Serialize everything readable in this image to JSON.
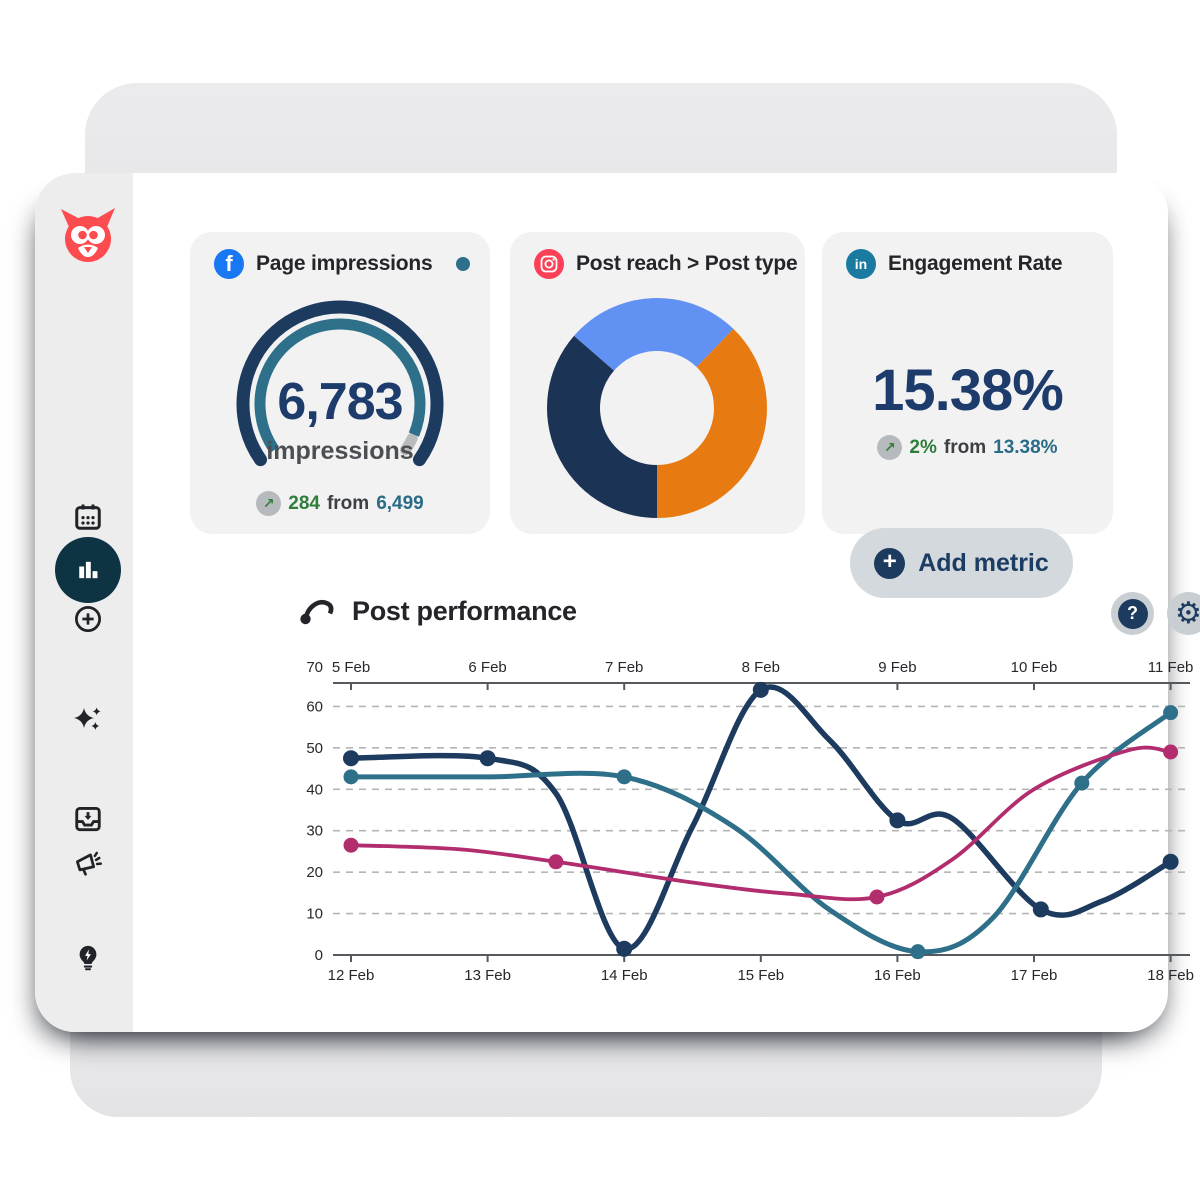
{
  "brand": {
    "name": "Hootsuite owl logo",
    "color": "#fc4c4f"
  },
  "sidebar": {
    "items": [
      {
        "id": "calendar",
        "icon": "calendar-icon"
      },
      {
        "id": "compose",
        "icon": "plus-circle-icon"
      },
      {
        "id": "ai",
        "icon": "sparkles-icon"
      },
      {
        "id": "inbox",
        "icon": "inbox-tray-icon"
      },
      {
        "id": "analytics",
        "icon": "bar-chart-icon",
        "active": true,
        "active_color": "#0e3444"
      },
      {
        "id": "amplify",
        "icon": "megaphone-icon"
      },
      {
        "id": "ideas",
        "icon": "lightbulb-bolt-icon"
      }
    ]
  },
  "app": {
    "cards": [
      {
        "network": "facebook",
        "network_color": "#1877f2",
        "network_glyph": "f",
        "title": "Page impressions",
        "gauge": {
          "value": "6,783",
          "unit": "impressions",
          "track_color": "#1d3a5f",
          "progress_color": "#2e7089",
          "remainder_color": "#b9bcbe",
          "start_deg": -125,
          "end_deg": 125,
          "progress_ratio": 0.95
        },
        "delta": {
          "arrow": "↗",
          "change": "284",
          "from_word": "from",
          "previous": "6,499"
        },
        "indicator_color": "#2e7089"
      },
      {
        "network": "instagram",
        "network_color": "#fb4156",
        "title": "Post reach > Post type",
        "donut": {
          "segments": [
            {
              "name": "blue",
              "color": "#6191f2",
              "start_deg": -49,
              "end_deg": 44
            },
            {
              "name": "orange",
              "color": "#e87a12",
              "start_deg": 44,
              "end_deg": 180
            },
            {
              "name": "navy",
              "color": "#1b3354",
              "start_deg": 180,
              "end_deg": 311
            }
          ]
        }
      },
      {
        "network": "linkedin",
        "network_color": "#1b7aa0",
        "network_glyph": "in",
        "title": "Engagement Rate",
        "value": "15.38%",
        "delta": {
          "arrow": "↗",
          "change": "2%",
          "from_word": "from",
          "previous": "13.38%"
        }
      }
    ],
    "add_metric_label": "Add metric",
    "section": {
      "title": "Post performance",
      "help_label": "?",
      "gear_glyph": "⚙"
    }
  },
  "chart_data": {
    "type": "line",
    "title": "Post performance",
    "x_axis_top": {
      "labels": [
        "5 Feb",
        "6 Feb",
        "7 Feb",
        "8 Feb",
        "9 Feb",
        "10 Feb",
        "11 Feb"
      ]
    },
    "x_axis_bottom": {
      "labels": [
        "12 Feb",
        "13 Feb",
        "14 Feb",
        "15 Feb",
        "16 Feb",
        "17 Feb",
        "18 Feb"
      ]
    },
    "y_axis": {
      "ticks": [
        70,
        60,
        50,
        40,
        30,
        20,
        10,
        0
      ],
      "range": [
        0,
        70
      ],
      "gridlines": "dashed-horizontal"
    },
    "legend": "none",
    "series": [
      {
        "name": "navy",
        "color": "#1d3a5f",
        "line_width": 5.5,
        "markers": [
          [
            0,
            47.5
          ],
          [
            1,
            47.5
          ],
          [
            2,
            1.5
          ],
          [
            3,
            64
          ],
          [
            4,
            32.5
          ],
          [
            5.05,
            11
          ],
          [
            6,
            22.5
          ]
        ],
        "curve": [
          [
            0,
            47.5
          ],
          [
            1,
            47.5
          ],
          [
            1.5,
            39
          ],
          [
            2,
            1.5
          ],
          [
            2.5,
            31
          ],
          [
            3,
            64
          ],
          [
            3.5,
            52
          ],
          [
            4,
            32.5
          ],
          [
            4.4,
            33
          ],
          [
            5.05,
            11
          ],
          [
            5.5,
            13
          ],
          [
            6,
            22.5
          ]
        ]
      },
      {
        "name": "teal",
        "color": "#2e7089",
        "line_width": 5,
        "markers": [
          [
            0,
            43
          ],
          [
            2,
            43
          ],
          [
            4.15,
            0.8
          ],
          [
            5.35,
            41.5
          ],
          [
            6,
            58.5
          ]
        ],
        "curve": [
          [
            0,
            43
          ],
          [
            1,
            43
          ],
          [
            2,
            43
          ],
          [
            2.8,
            31
          ],
          [
            3.5,
            11
          ],
          [
            4.15,
            0.8
          ],
          [
            4.7,
            9
          ],
          [
            5.35,
            41.5
          ],
          [
            6,
            58.5
          ]
        ]
      },
      {
        "name": "magenta",
        "color": "#b12d6e",
        "line_width": 3.8,
        "markers": [
          [
            0,
            26.5
          ],
          [
            1.5,
            22.5
          ],
          [
            3.85,
            14
          ],
          [
            6,
            49
          ]
        ],
        "curve": [
          [
            0,
            26.5
          ],
          [
            0.8,
            25.5
          ],
          [
            1.5,
            22.5
          ],
          [
            2.5,
            17.5
          ],
          [
            3.2,
            14.8
          ],
          [
            3.85,
            14
          ],
          [
            4.4,
            23
          ],
          [
            5,
            40
          ],
          [
            5.7,
            49.5
          ],
          [
            6,
            49
          ]
        ]
      }
    ]
  }
}
